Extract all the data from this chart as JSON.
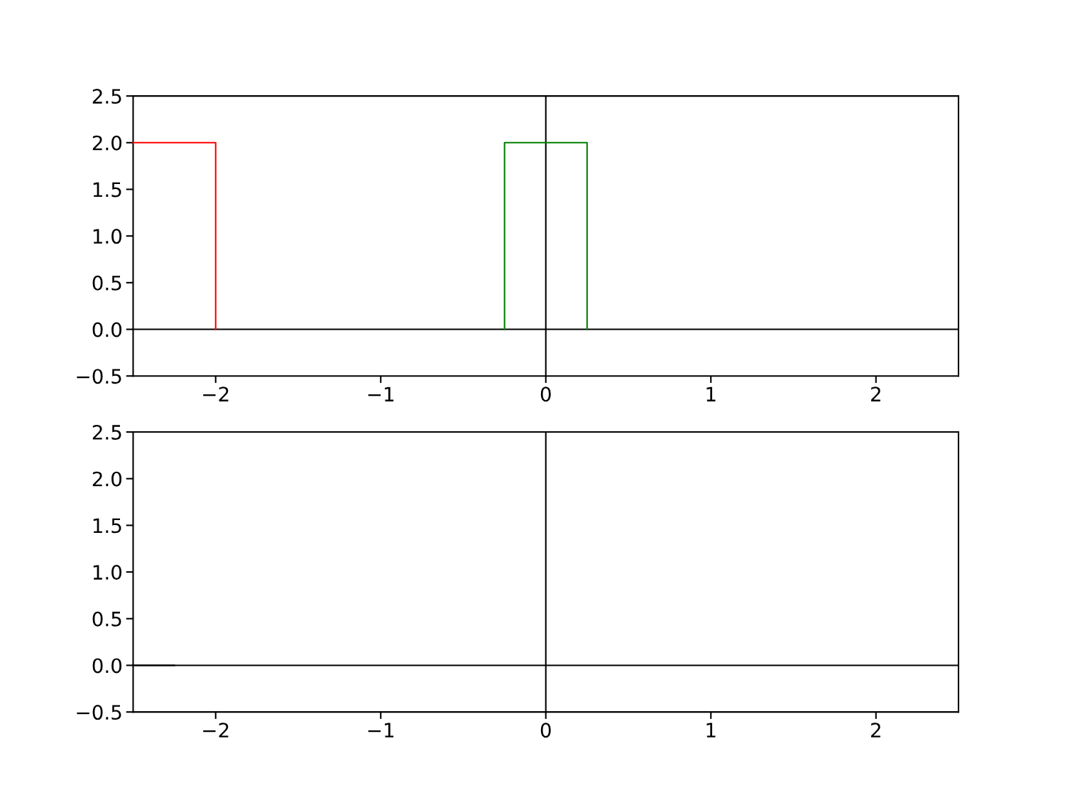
{
  "chart_data": [
    {
      "type": "line",
      "xlim": [
        -2.5,
        2.5
      ],
      "ylim": [
        -0.5,
        2.5
      ],
      "xticks": [
        {
          "value": -2,
          "label": "−2"
        },
        {
          "value": -1,
          "label": "−1"
        },
        {
          "value": 0,
          "label": "0"
        },
        {
          "value": 1,
          "label": "1"
        },
        {
          "value": 2,
          "label": "2"
        }
      ],
      "yticks": [
        {
          "value": -0.5,
          "label": "−0.5"
        },
        {
          "value": 0,
          "label": "0.0"
        },
        {
          "value": 0.5,
          "label": "0.5"
        },
        {
          "value": 1,
          "label": "1.0"
        },
        {
          "value": 1.5,
          "label": "1.5"
        },
        {
          "value": 2,
          "label": "2.0"
        },
        {
          "value": 2.5,
          "label": "2.5"
        }
      ],
      "series": [
        {
          "color": "#000000",
          "x": [
            -2.5,
            2.5
          ],
          "values": [
            0,
            0
          ]
        },
        {
          "color": "#000000",
          "x": [
            0,
            0
          ],
          "values": [
            -0.5,
            2.5
          ]
        },
        {
          "color": "#ff0000",
          "x": [
            -2.5,
            -2,
            -2
          ],
          "values": [
            2,
            2,
            0
          ]
        },
        {
          "color": "#008000",
          "x": [
            -0.25,
            -0.25,
            0.25,
            0.25
          ],
          "values": [
            0,
            2,
            2,
            0
          ]
        }
      ],
      "grid": false,
      "legend": false
    },
    {
      "type": "line",
      "xlim": [
        -2.5,
        2.5
      ],
      "ylim": [
        -0.5,
        2.5
      ],
      "xticks": [
        {
          "value": -2,
          "label": "−2"
        },
        {
          "value": -1,
          "label": "−1"
        },
        {
          "value": 0,
          "label": "0"
        },
        {
          "value": 1,
          "label": "1"
        },
        {
          "value": 2,
          "label": "2"
        }
      ],
      "yticks": [
        {
          "value": -0.5,
          "label": "−0.5"
        },
        {
          "value": 0,
          "label": "0.0"
        },
        {
          "value": 0.5,
          "label": "0.5"
        },
        {
          "value": 1,
          "label": "1.0"
        },
        {
          "value": 1.5,
          "label": "1.5"
        },
        {
          "value": 2,
          "label": "2.0"
        },
        {
          "value": 2.5,
          "label": "2.5"
        }
      ],
      "series": [
        {
          "color": "#000000",
          "x": [
            -2.5,
            2.5
          ],
          "values": [
            0,
            0
          ]
        },
        {
          "color": "#000000",
          "x": [
            0,
            0
          ],
          "values": [
            -0.5,
            2.5
          ]
        },
        {
          "color": "#000000",
          "x": [
            -2.5,
            -2.25
          ],
          "values": [
            0,
            0
          ]
        }
      ],
      "grid": false,
      "legend": false
    }
  ]
}
